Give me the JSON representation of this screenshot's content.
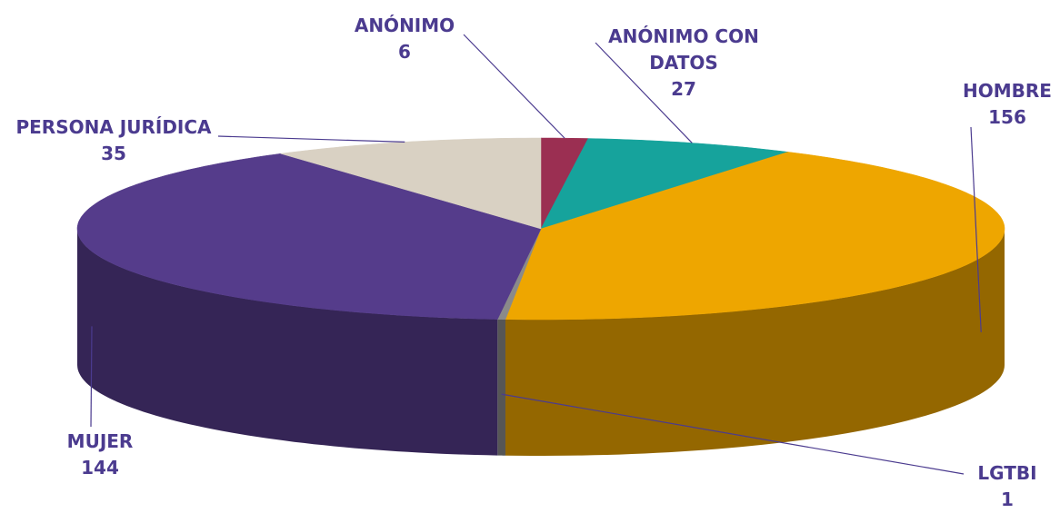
{
  "chart_data": {
    "type": "pie3d",
    "categories": [
      "ANÓNIMO",
      "ANÓNIMO CON DATOS",
      "HOMBRE",
      "LGTBI",
      "MUJER",
      "PERSONA JURÍDICA"
    ],
    "values": [
      6,
      27,
      156,
      1,
      144,
      35
    ],
    "colors": [
      "#9b2f52",
      "#16a39c",
      "#eea600",
      "#8a8a8a",
      "#553c8b",
      "#d9d1c3"
    ]
  }
}
